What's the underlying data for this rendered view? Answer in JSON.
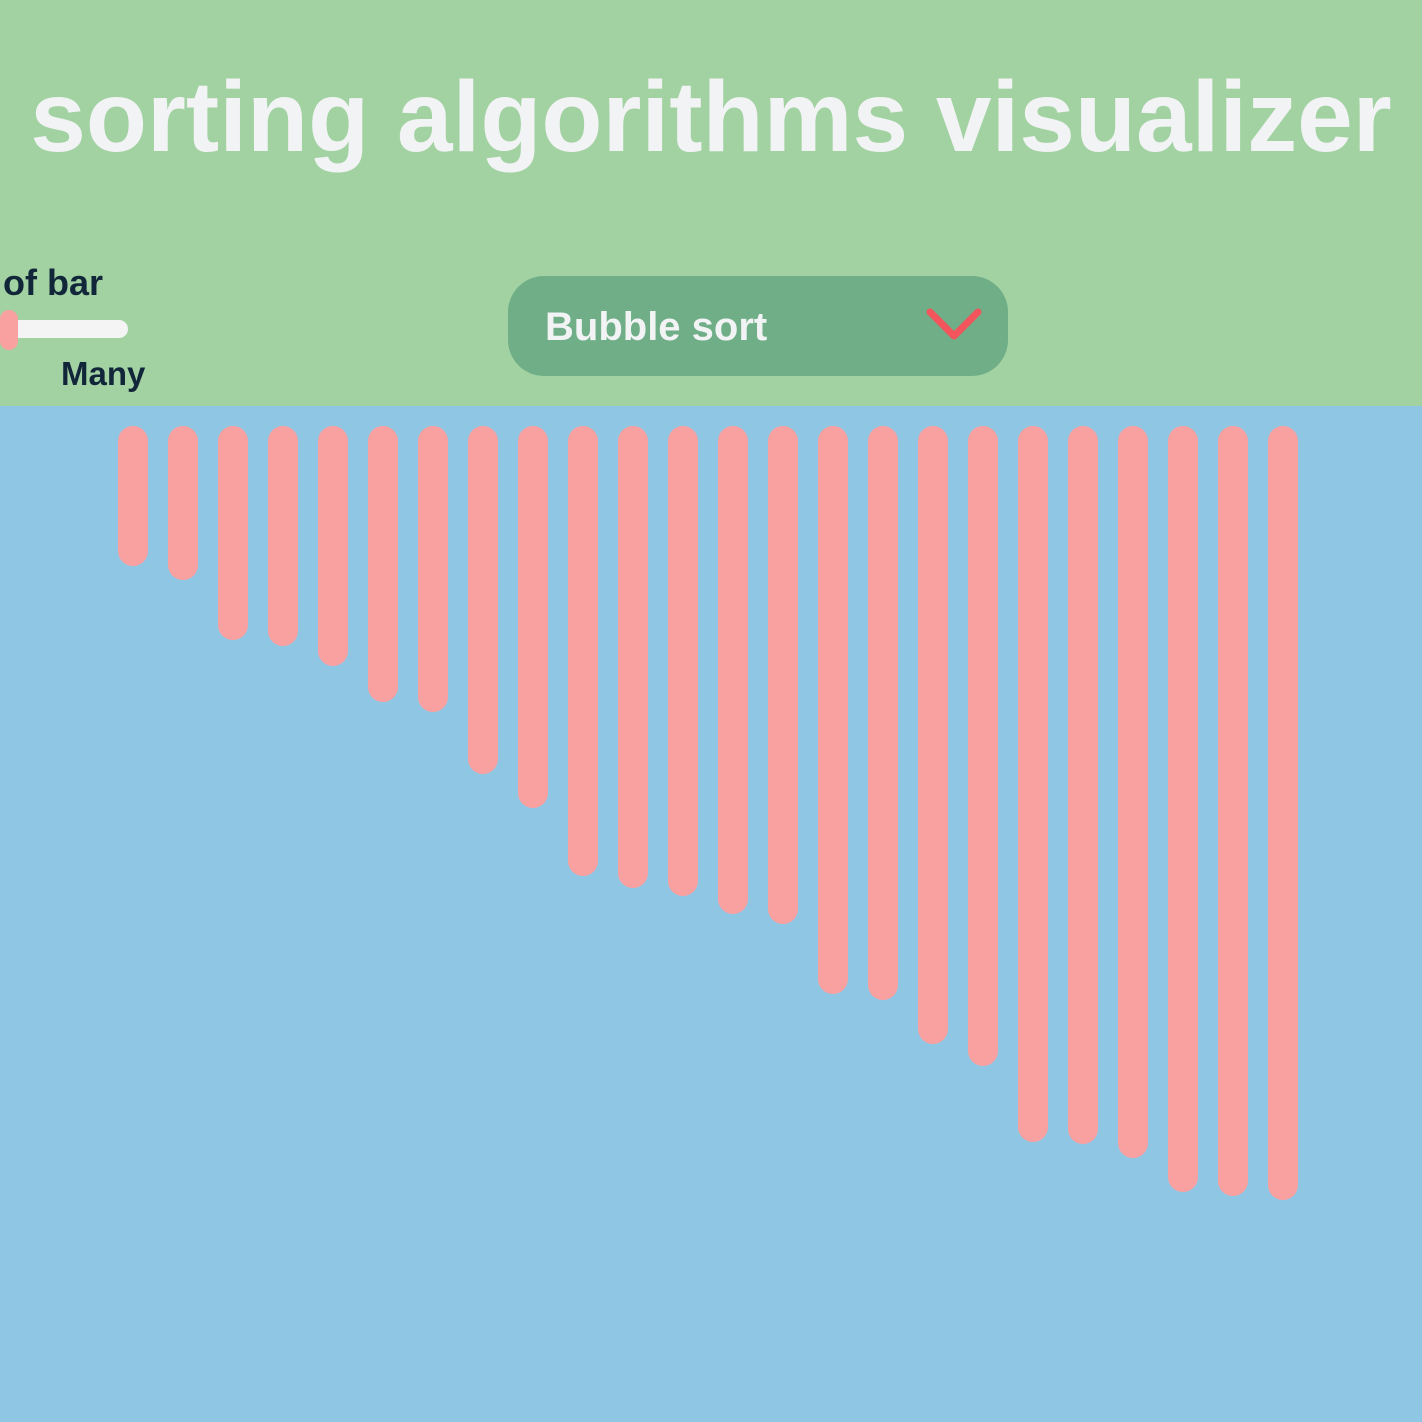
{
  "header": {
    "title": "sorting algorithms visualizer",
    "background": "#a2d2a2"
  },
  "slider": {
    "label": "of bar",
    "max_label": "Many",
    "value_fraction": 0.0,
    "thumb_color": "#f9a1a0"
  },
  "algorithm_select": {
    "selected": "Bubble sort",
    "icon": "chevron-down-icon",
    "chevron_color": "#f4545c"
  },
  "stage": {
    "background": "#8ec6e4"
  },
  "bars": {
    "color": "#f9a1a0",
    "values": [
      140,
      154,
      214,
      220,
      240,
      276,
      286,
      348,
      382,
      450,
      462,
      470,
      488,
      498,
      568,
      574,
      618,
      640,
      716,
      718,
      732,
      766,
      770,
      774
    ]
  }
}
